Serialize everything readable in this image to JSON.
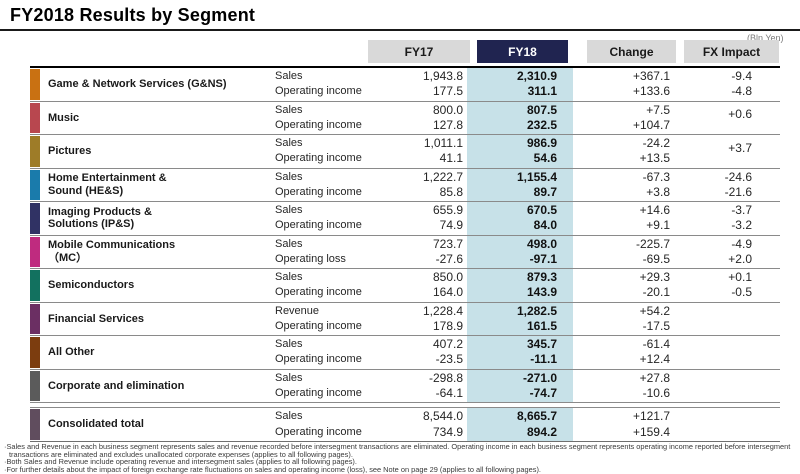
{
  "title": "FY2018 Results by Segment",
  "unit_note": "(Bln Yen)",
  "columns": {
    "fy17": "FY17",
    "fy18": "FY18",
    "change": "Change",
    "fx": "FX Impact"
  },
  "segments": [
    {
      "name": "Game & Network Services (G&NS)",
      "color": "#C97112",
      "rows": [
        {
          "label": "Sales",
          "fy17": "1,943.8",
          "fy18": "2,310.9",
          "change": "+367.1",
          "fx": "-9.4"
        },
        {
          "label": "Operating income",
          "fy17": "177.5",
          "fy18": "311.1",
          "change": "+133.6",
          "fx": "-4.8"
        }
      ]
    },
    {
      "name": "Music",
      "color": "#B8474F",
      "rows": [
        {
          "label": "Sales",
          "fy17": "800.0",
          "fy18": "807.5",
          "change": "+7.5",
          "fx": "+0.6"
        },
        {
          "label": "Operating income",
          "fy17": "127.8",
          "fy18": "232.5",
          "change": "+104.7",
          "fx": ""
        }
      ]
    },
    {
      "name": "Pictures",
      "color": "#9E7C28",
      "rows": [
        {
          "label": "Sales",
          "fy17": "1,011.1",
          "fy18": "986.9",
          "change": "-24.2",
          "fx": "+3.7"
        },
        {
          "label": "Operating income",
          "fy17": "41.1",
          "fy18": "54.6",
          "change": "+13.5",
          "fx": ""
        }
      ]
    },
    {
      "name": "Home Entertainment &\nSound (HE&S)",
      "color": "#1A7BAB",
      "rows": [
        {
          "label": "Sales",
          "fy17": "1,222.7",
          "fy18": "1,155.4",
          "change": "-67.3",
          "fx": "-24.6"
        },
        {
          "label": "Operating income",
          "fy17": "85.8",
          "fy18": "89.7",
          "change": "+3.8",
          "fx": "-21.6"
        }
      ]
    },
    {
      "name": "Imaging Products &\nSolutions (IP&S)",
      "color": "#303264",
      "rows": [
        {
          "label": "Sales",
          "fy17": "655.9",
          "fy18": "670.5",
          "change": "+14.6",
          "fx": "-3.7"
        },
        {
          "label": "Operating income",
          "fy17": "74.9",
          "fy18": "84.0",
          "change": "+9.1",
          "fx": "-3.2"
        }
      ]
    },
    {
      "name": "Mobile Communications\n（MC）",
      "color": "#BF2B7F",
      "rows": [
        {
          "label": "Sales",
          "fy17": "723.7",
          "fy18": "498.0",
          "change": "-225.7",
          "fx": "-4.9"
        },
        {
          "label": "Operating loss",
          "fy17": "-27.6",
          "fy18": "-97.1",
          "change": "-69.5",
          "fx": "+2.0"
        }
      ]
    },
    {
      "name": "Semiconductors",
      "color": "#12715F",
      "rows": [
        {
          "label": "Sales",
          "fy17": "850.0",
          "fy18": "879.3",
          "change": "+29.3",
          "fx": "+0.1"
        },
        {
          "label": "Operating income",
          "fy17": "164.0",
          "fy18": "143.9",
          "change": "-20.1",
          "fx": "-0.5"
        }
      ]
    },
    {
      "name": "Financial Services",
      "color": "#6B2F63",
      "rows": [
        {
          "label": "Revenue",
          "fy17": "1,228.4",
          "fy18": "1,282.5",
          "change": "+54.2",
          "fx": ""
        },
        {
          "label": "Operating income",
          "fy17": "178.9",
          "fy18": "161.5",
          "change": "-17.5",
          "fx": ""
        }
      ]
    },
    {
      "name": "All Other",
      "color": "#7C3D0F",
      "rows": [
        {
          "label": "Sales",
          "fy17": "407.2",
          "fy18": "345.7",
          "change": "-61.4",
          "fx": ""
        },
        {
          "label": "Operating income",
          "fy17": "-23.5",
          "fy18": "-11.1",
          "change": "+12.4",
          "fx": ""
        }
      ]
    },
    {
      "name": "Corporate and elimination",
      "color": "#5B5B5B",
      "rows": [
        {
          "label": "Sales",
          "fy17": "-298.8",
          "fy18": "-271.0",
          "change": "+27.8",
          "fx": ""
        },
        {
          "label": "Operating income",
          "fy17": "-64.1",
          "fy18": "-74.7",
          "change": "-10.6",
          "fx": ""
        }
      ]
    },
    {
      "name": "Consolidated total",
      "color": "#604D5E",
      "total": true,
      "rows": [
        {
          "label": "Sales",
          "fy17": "8,544.0",
          "fy18": "8,665.7",
          "change": "+121.7",
          "fx": ""
        },
        {
          "label": "Operating income",
          "fy17": "734.9",
          "fy18": "894.2",
          "change": "+159.4",
          "fx": ""
        }
      ]
    }
  ],
  "footnotes": {
    "line1": "·Sales and Revenue in each business segment represents sales and revenue recorded before intersegment transactions are eliminated.  Operating income in each business segment represents operating income reported before intersegment",
    "line2": "transactions are eliminated and excludes unallocated corporate expenses (applies to all following pages).",
    "line3": "·Both Sales and Revenue include operating revenue and intersegment sales (applies to all following pages).",
    "line4": "·For further details about the impact of foreign exchange rate fluctuations on sales and operating income (loss), see Note on page 29 (applies to all following pages)."
  }
}
